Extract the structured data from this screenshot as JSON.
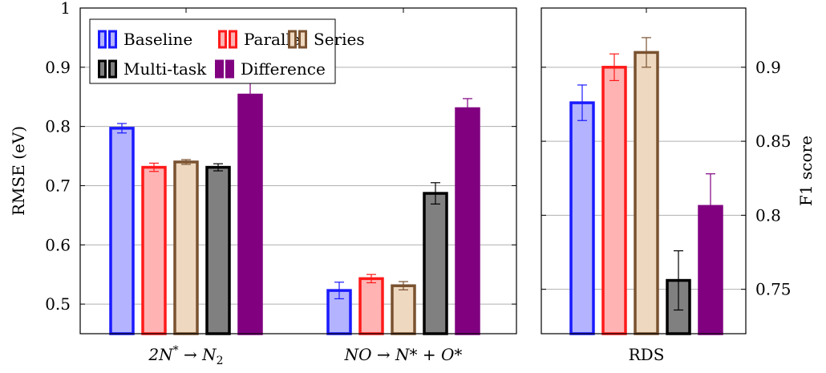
{
  "colors": {
    "Baseline": {
      "stroke": "#1a1aff",
      "fill": "#b3b3ff"
    },
    "Parallel": {
      "stroke": "#ff1a1a",
      "fill": "#ffb3b3"
    },
    "Series": {
      "stroke": "#7a5230",
      "fill": "#eed8c0"
    },
    "Multi-task": {
      "stroke": "#000000",
      "fill": "#808080"
    },
    "Difference": {
      "stroke": "#800080",
      "fill": "#800080"
    }
  },
  "chart_data": [
    {
      "type": "bar",
      "ylabel": "RMSE (eV)",
      "ylim": [
        0.45,
        1.0
      ],
      "yticks": [
        "0.5",
        "0.6",
        "0.7",
        "0.8",
        "0.9",
        "1"
      ],
      "grid": true,
      "legend": {
        "placement": "top-left",
        "entries": [
          "Baseline",
          "Parallel",
          "Series",
          "Multi-task",
          "Difference"
        ]
      },
      "categories": [
        {
          "base": "2N",
          "sup": "*",
          "arrow": " → ",
          "rhs": "N",
          "rhs_sub": "2"
        },
        {
          "text": "NO → N* + O*"
        }
      ],
      "series": [
        {
          "name": "Baseline",
          "values": [
            0.797,
            0.523
          ],
          "errors": [
            0.008,
            0.014
          ]
        },
        {
          "name": "Parallel",
          "values": [
            0.731,
            0.543
          ],
          "errors": [
            0.007,
            0.007
          ]
        },
        {
          "name": "Series",
          "values": [
            0.74,
            0.531
          ],
          "errors": [
            0.004,
            0.007
          ]
        },
        {
          "name": "Multi-task",
          "values": [
            0.731,
            0.687
          ],
          "errors": [
            0.006,
            0.018
          ]
        },
        {
          "name": "Difference",
          "values": [
            0.853,
            0.83
          ],
          "errors": [
            0.02,
            0.017
          ]
        }
      ]
    },
    {
      "type": "bar",
      "ylabel": "F1 score",
      "ylim": [
        0.72,
        0.94
      ],
      "yticks": [
        "0.75",
        "0.8",
        "0.85",
        "0.9"
      ],
      "grid": true,
      "categories": [
        "RDS"
      ],
      "series": [
        {
          "name": "Baseline",
          "values": [
            0.876
          ],
          "errors": [
            0.012
          ]
        },
        {
          "name": "Parallel",
          "values": [
            0.9
          ],
          "errors": [
            0.009
          ]
        },
        {
          "name": "Series",
          "values": [
            0.91
          ],
          "errors": [
            0.01
          ]
        },
        {
          "name": "Multi-task",
          "values": [
            0.756
          ],
          "errors": [
            0.02
          ]
        },
        {
          "name": "Difference",
          "values": [
            0.806
          ],
          "errors": [
            0.022
          ]
        }
      ]
    }
  ]
}
